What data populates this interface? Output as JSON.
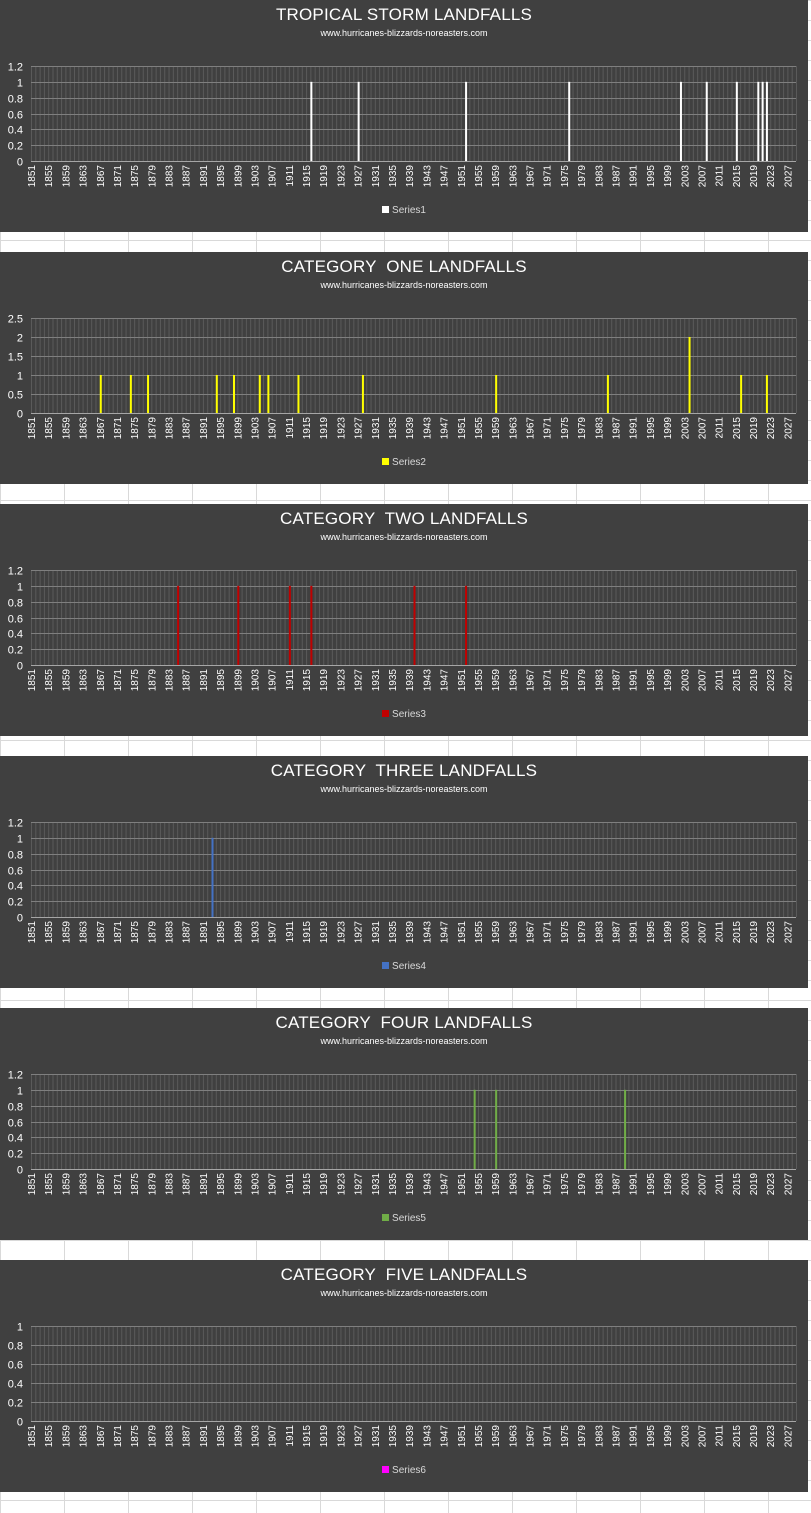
{
  "subtitle": "www.hurricanes-blizzards-noreasters.com",
  "chart_data": [
    {
      "type": "bar",
      "title": "TROPICAL STORM LANDFALLS",
      "subtitle": "www.hurricanes-blizzards-noreasters.com",
      "series_name": "Series1",
      "color": "#ffffff",
      "x_range": [
        1851,
        2029
      ],
      "x_ticks": [
        1851,
        1855,
        1859,
        1863,
        1867,
        1871,
        1875,
        1879,
        1883,
        1887,
        1891,
        1895,
        1899,
        1903,
        1907,
        1911,
        1915,
        1919,
        1923,
        1927,
        1931,
        1935,
        1939,
        1943,
        1947,
        1951,
        1955,
        1959,
        1963,
        1967,
        1971,
        1975,
        1979,
        1983,
        1987,
        1991,
        1995,
        1999,
        2003,
        2007,
        2011,
        2015,
        2019,
        2023,
        2027
      ],
      "y_ticks": [
        0,
        0.2,
        0.4,
        0.6,
        0.8,
        1,
        1.2
      ],
      "ylim": [
        0,
        1.2
      ],
      "points": [
        {
          "x": 1916,
          "y": 1
        },
        {
          "x": 1927,
          "y": 1
        },
        {
          "x": 1952,
          "y": 1
        },
        {
          "x": 1976,
          "y": 1
        },
        {
          "x": 2002,
          "y": 1
        },
        {
          "x": 2008,
          "y": 1
        },
        {
          "x": 2015,
          "y": 1
        },
        {
          "x": 2020,
          "y": 1
        },
        {
          "x": 2021,
          "y": 1
        },
        {
          "x": 2022,
          "y": 1
        }
      ],
      "legend_position": "bottom",
      "grid": true
    },
    {
      "type": "bar",
      "title": "CATEGORY  ONE LANDFALLS",
      "subtitle": "www.hurricanes-blizzards-noreasters.com",
      "series_name": "Series2",
      "color": "#ffff00",
      "x_range": [
        1851,
        2029
      ],
      "x_ticks": [
        1851,
        1855,
        1859,
        1863,
        1867,
        1871,
        1875,
        1879,
        1883,
        1887,
        1891,
        1895,
        1899,
        1903,
        1907,
        1911,
        1915,
        1919,
        1923,
        1927,
        1931,
        1935,
        1939,
        1943,
        1947,
        1951,
        1955,
        1959,
        1963,
        1967,
        1971,
        1975,
        1979,
        1983,
        1987,
        1991,
        1995,
        1999,
        2003,
        2007,
        2011,
        2015,
        2019,
        2023,
        2027
      ],
      "y_ticks": [
        0,
        0.5,
        1,
        1.5,
        2,
        2.5
      ],
      "ylim": [
        0,
        2.5
      ],
      "points": [
        {
          "x": 1867,
          "y": 1
        },
        {
          "x": 1874,
          "y": 1
        },
        {
          "x": 1878,
          "y": 1
        },
        {
          "x": 1894,
          "y": 1
        },
        {
          "x": 1898,
          "y": 1
        },
        {
          "x": 1904,
          "y": 1
        },
        {
          "x": 1906,
          "y": 1
        },
        {
          "x": 1913,
          "y": 1
        },
        {
          "x": 1928,
          "y": 1
        },
        {
          "x": 1959,
          "y": 1
        },
        {
          "x": 1985,
          "y": 1
        },
        {
          "x": 2004,
          "y": 2
        },
        {
          "x": 2016,
          "y": 1
        },
        {
          "x": 2022,
          "y": 1
        }
      ],
      "legend_position": "bottom",
      "grid": true
    },
    {
      "type": "bar",
      "title": "CATEGORY  TWO LANDFALLS",
      "subtitle": "www.hurricanes-blizzards-noreasters.com",
      "series_name": "Series3",
      "color": "#c00000",
      "x_range": [
        1851,
        2029
      ],
      "x_ticks": [
        1851,
        1855,
        1859,
        1863,
        1867,
        1871,
        1875,
        1879,
        1883,
        1887,
        1891,
        1895,
        1899,
        1903,
        1907,
        1911,
        1915,
        1919,
        1923,
        1927,
        1931,
        1935,
        1939,
        1943,
        1947,
        1951,
        1955,
        1959,
        1963,
        1967,
        1971,
        1975,
        1979,
        1983,
        1987,
        1991,
        1995,
        1999,
        2003,
        2007,
        2011,
        2015,
        2019,
        2023,
        2027
      ],
      "y_ticks": [
        0,
        0.2,
        0.4,
        0.6,
        0.8,
        1,
        1.2
      ],
      "ylim": [
        0,
        1.2
      ],
      "points": [
        {
          "x": 1885,
          "y": 1
        },
        {
          "x": 1899,
          "y": 1
        },
        {
          "x": 1911,
          "y": 1
        },
        {
          "x": 1916,
          "y": 1
        },
        {
          "x": 1940,
          "y": 1
        },
        {
          "x": 1952,
          "y": 1
        }
      ],
      "legend_position": "bottom",
      "grid": true
    },
    {
      "type": "bar",
      "title": "CATEGORY  THREE LANDFALLS",
      "subtitle": "www.hurricanes-blizzards-noreasters.com",
      "series_name": "Series4",
      "color": "#4472c4",
      "x_range": [
        1851,
        2029
      ],
      "x_ticks": [
        1851,
        1855,
        1859,
        1863,
        1867,
        1871,
        1875,
        1879,
        1883,
        1887,
        1891,
        1895,
        1899,
        1903,
        1907,
        1911,
        1915,
        1919,
        1923,
        1927,
        1931,
        1935,
        1939,
        1943,
        1947,
        1951,
        1955,
        1959,
        1963,
        1967,
        1971,
        1975,
        1979,
        1983,
        1987,
        1991,
        1995,
        1999,
        2003,
        2007,
        2011,
        2015,
        2019,
        2023,
        2027
      ],
      "y_ticks": [
        0,
        0.2,
        0.4,
        0.6,
        0.8,
        1,
        1.2
      ],
      "ylim": [
        0,
        1.2
      ],
      "points": [
        {
          "x": 1893,
          "y": 1
        }
      ],
      "legend_position": "bottom",
      "grid": true
    },
    {
      "type": "bar",
      "title": "CATEGORY  FOUR LANDFALLS",
      "subtitle": "www.hurricanes-blizzards-noreasters.com",
      "series_name": "Series5",
      "color": "#70ad47",
      "x_range": [
        1851,
        2029
      ],
      "x_ticks": [
        1851,
        1855,
        1859,
        1863,
        1867,
        1871,
        1875,
        1879,
        1883,
        1887,
        1891,
        1895,
        1899,
        1903,
        1907,
        1911,
        1915,
        1919,
        1923,
        1927,
        1931,
        1935,
        1939,
        1943,
        1947,
        1951,
        1955,
        1959,
        1963,
        1967,
        1971,
        1975,
        1979,
        1983,
        1987,
        1991,
        1995,
        1999,
        2003,
        2007,
        2011,
        2015,
        2019,
        2023,
        2027
      ],
      "y_ticks": [
        0,
        0.2,
        0.4,
        0.6,
        0.8,
        1,
        1.2
      ],
      "ylim": [
        0,
        1.2
      ],
      "points": [
        {
          "x": 1954,
          "y": 1
        },
        {
          "x": 1959,
          "y": 1
        },
        {
          "x": 1989,
          "y": 1
        }
      ],
      "legend_position": "bottom",
      "grid": true
    },
    {
      "type": "bar",
      "title": "CATEGORY  FIVE LANDFALLS",
      "subtitle": "www.hurricanes-blizzards-noreasters.com",
      "series_name": "Series6",
      "color": "#ff00ff",
      "x_range": [
        1851,
        2029
      ],
      "x_ticks": [
        1851,
        1855,
        1859,
        1863,
        1867,
        1871,
        1875,
        1879,
        1883,
        1887,
        1891,
        1895,
        1899,
        1903,
        1907,
        1911,
        1915,
        1919,
        1923,
        1927,
        1931,
        1935,
        1939,
        1943,
        1947,
        1951,
        1955,
        1959,
        1963,
        1967,
        1971,
        1975,
        1979,
        1983,
        1987,
        1991,
        1995,
        1999,
        2003,
        2007,
        2011,
        2015,
        2019,
        2023,
        2027
      ],
      "y_ticks": [
        0,
        0.2,
        0.4,
        0.6,
        0.8,
        1
      ],
      "ylim": [
        0,
        1
      ],
      "points": [],
      "legend_position": "bottom",
      "grid": true
    }
  ]
}
